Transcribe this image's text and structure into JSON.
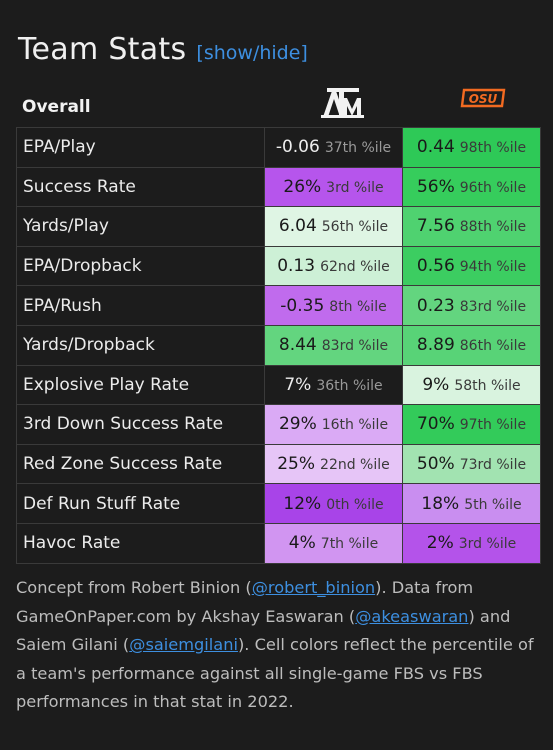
{
  "header": {
    "title": "Team Stats",
    "toggle": "[show/hide]"
  },
  "table": {
    "section_label": "Overall",
    "teams": [
      {
        "logo": "texas-am-logo",
        "wordmark": "ATM"
      },
      {
        "logo": "oklahoma-state-logo",
        "wordmark": "OSU",
        "color": "#f26a21"
      }
    ],
    "rows": [
      {
        "label": "EPA/Play",
        "a": {
          "value": "-0.06",
          "pct": "37th %ile",
          "bg": "#1c1c1c",
          "tone": "light"
        },
        "b": {
          "value": "0.44",
          "pct": "98th %ile",
          "bg": "#2ec957",
          "tone": "dark"
        }
      },
      {
        "label": "Success Rate",
        "a": {
          "value": "26%",
          "pct": "3rd %ile",
          "bg": "#b655ec",
          "tone": "dark"
        },
        "b": {
          "value": "56%",
          "pct": "96th %ile",
          "bg": "#36cd5c",
          "tone": "dark"
        }
      },
      {
        "label": "Yards/Play",
        "a": {
          "value": "6.04",
          "pct": "56th %ile",
          "bg": "#dff5e4",
          "tone": "dark"
        },
        "b": {
          "value": "7.56",
          "pct": "88th %ile",
          "bg": "#4fd270",
          "tone": "dark"
        }
      },
      {
        "label": "EPA/Dropback",
        "a": {
          "value": "0.13",
          "pct": "62nd %ile",
          "bg": "#cdf0d6",
          "tone": "dark"
        },
        "b": {
          "value": "0.56",
          "pct": "94th %ile",
          "bg": "#3ccd61",
          "tone": "dark"
        }
      },
      {
        "label": "EPA/Rush",
        "a": {
          "value": "-0.35",
          "pct": "8th %ile",
          "bg": "#c06bed",
          "tone": "dark"
        },
        "b": {
          "value": "0.23",
          "pct": "83rd %ile",
          "bg": "#63d57f",
          "tone": "dark"
        }
      },
      {
        "label": "Yards/Dropback",
        "a": {
          "value": "8.44",
          "pct": "83rd %ile",
          "bg": "#63d57f",
          "tone": "dark"
        },
        "b": {
          "value": "8.89",
          "pct": "86th %ile",
          "bg": "#58d377",
          "tone": "dark"
        }
      },
      {
        "label": "Explosive Play Rate",
        "a": {
          "value": "7%",
          "pct": "36th %ile",
          "bg": "#1c1c1c",
          "tone": "light"
        },
        "b": {
          "value": "9%",
          "pct": "58th %ile",
          "bg": "#d9f3df",
          "tone": "dark"
        }
      },
      {
        "label": "3rd Down Success Rate",
        "a": {
          "value": "29%",
          "pct": "16th %ile",
          "bg": "#daaaf5",
          "tone": "dark"
        },
        "b": {
          "value": "70%",
          "pct": "97th %ile",
          "bg": "#33cb5a",
          "tone": "dark"
        }
      },
      {
        "label": "Red Zone Success Rate",
        "a": {
          "value": "25%",
          "pct": "22nd %ile",
          "bg": "#e6c5f7",
          "tone": "dark"
        },
        "b": {
          "value": "50%",
          "pct": "73rd %ile",
          "bg": "#a2e3b1",
          "tone": "dark"
        }
      },
      {
        "label": "Def Run Stuff Rate",
        "a": {
          "value": "12%",
          "pct": "0th %ile",
          "bg": "#a844e8",
          "tone": "dark"
        },
        "b": {
          "value": "18%",
          "pct": "5th %ile",
          "bg": "#c98ef0",
          "tone": "dark"
        }
      },
      {
        "label": "Havoc Rate",
        "a": {
          "value": "4%",
          "pct": "7th %ile",
          "bg": "#d195f1",
          "tone": "dark"
        },
        "b": {
          "value": "2%",
          "pct": "3rd %ile",
          "bg": "#b453ea",
          "tone": "dark"
        }
      }
    ]
  },
  "footer": {
    "t1": "Concept from Robert Binion (",
    "link1": "@robert_binion",
    "t2": "). Data from GameOnPaper.com by Akshay Easwaran (",
    "link2": "@akeaswaran",
    "t3": ") and Saiem Gilani (",
    "link3": "@saiemgilani",
    "t4": "). Cell colors reflect the percentile of a team's performance against all single-game FBS vs FBS performances in that stat in 2022."
  }
}
